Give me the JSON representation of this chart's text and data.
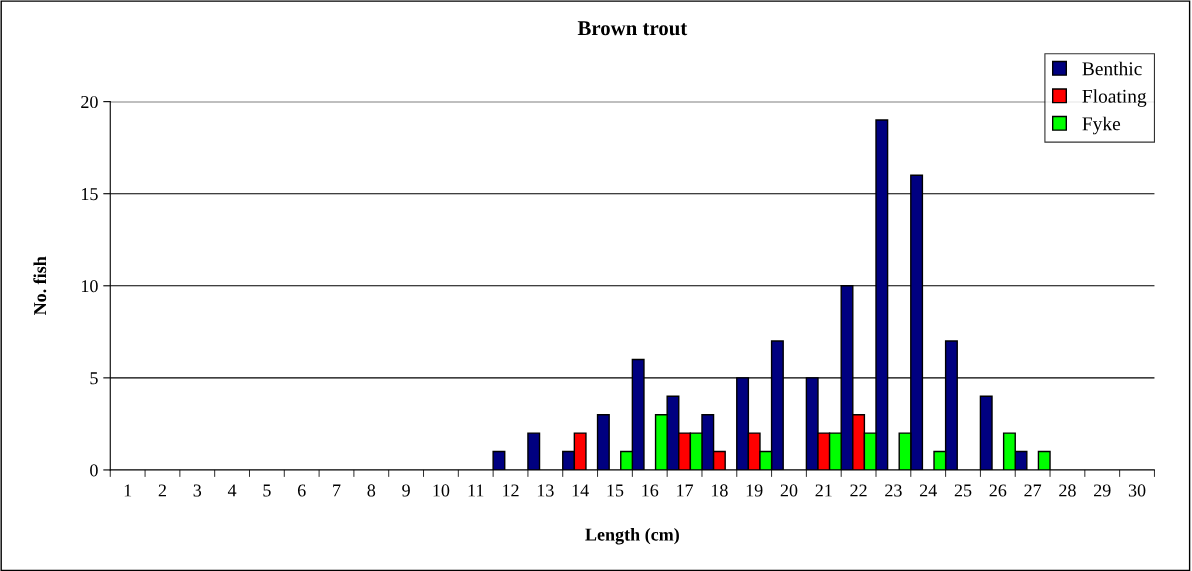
{
  "chart_data": {
    "type": "bar",
    "title": "Brown trout",
    "xlabel": "Length (cm)",
    "ylabel": "No. fish",
    "categories": [
      "1",
      "2",
      "3",
      "4",
      "5",
      "6",
      "7",
      "8",
      "9",
      "10",
      "11",
      "12",
      "13",
      "14",
      "15",
      "16",
      "17",
      "18",
      "19",
      "20",
      "21",
      "22",
      "23",
      "24",
      "25",
      "26",
      "27",
      "28",
      "29",
      "30"
    ],
    "series": [
      {
        "name": "Benthic",
        "color": "#000080",
        "values": [
          0,
          0,
          0,
          0,
          0,
          0,
          0,
          0,
          0,
          0,
          0,
          1,
          2,
          1,
          3,
          6,
          4,
          3,
          5,
          7,
          5,
          10,
          19,
          16,
          7,
          4,
          1,
          0,
          0,
          0
        ]
      },
      {
        "name": "Floating",
        "color": "#ff0000",
        "values": [
          0,
          0,
          0,
          0,
          0,
          0,
          0,
          0,
          0,
          0,
          0,
          0,
          0,
          2,
          0,
          0,
          2,
          1,
          2,
          0,
          2,
          3,
          0,
          0,
          0,
          0,
          0,
          0,
          0,
          0
        ]
      },
      {
        "name": "Fyke",
        "color": "#00ff00",
        "values": [
          0,
          0,
          0,
          0,
          0,
          0,
          0,
          0,
          0,
          0,
          0,
          0,
          0,
          0,
          1,
          3,
          2,
          0,
          1,
          0,
          2,
          2,
          2,
          1,
          0,
          2,
          1,
          0,
          0,
          0
        ]
      }
    ],
    "ylim": [
      0,
      20
    ],
    "yticks": [
      0,
      5,
      10,
      15,
      20
    ],
    "grid": "y",
    "legend": "top right"
  }
}
